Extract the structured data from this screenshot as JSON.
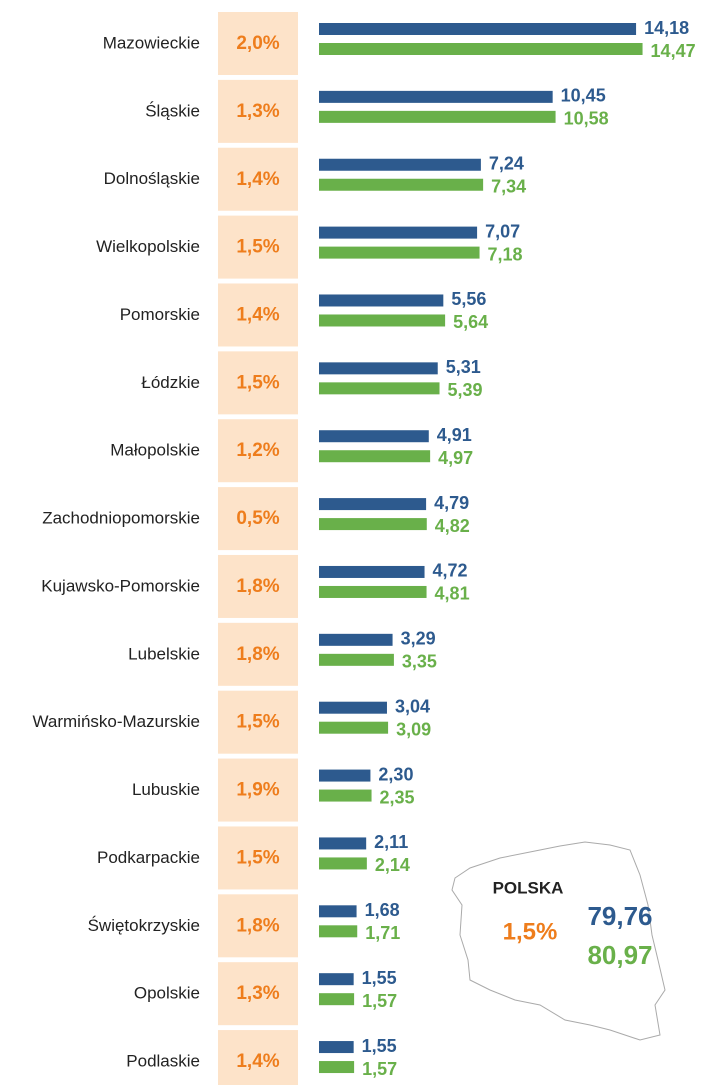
{
  "chart_data": {
    "type": "bar",
    "categories": [
      "Mazowieckie",
      "Śląskie",
      "Dolnośląskie",
      "Wielkopolskie",
      "Pomorskie",
      "Łódzkie",
      "Małopolskie",
      "Zachodniopomorskie",
      "Kujawsko-Pomorskie",
      "Lubelskie",
      "Warmińsko-Mazurskie",
      "Lubuskie",
      "Podkarpackie",
      "Świętokrzyskie",
      "Opolskie",
      "Podlaskie"
    ],
    "series": [
      {
        "color": "#2d5a8e",
        "values": [
          14.18,
          10.45,
          7.24,
          7.07,
          5.56,
          5.31,
          4.91,
          4.79,
          4.72,
          3.29,
          3.04,
          2.3,
          2.11,
          1.68,
          1.55,
          1.55
        ],
        "value_labels": [
          "14,18",
          "10,45",
          "7,24",
          "7,07",
          "5,56",
          "5,31",
          "4,91",
          "4,79",
          "4,72",
          "3,29",
          "3,04",
          "2,30",
          "2,11",
          "1,68",
          "1,55",
          "1,55"
        ]
      },
      {
        "color": "#69b04a",
        "values": [
          14.47,
          10.58,
          7.34,
          7.18,
          5.64,
          5.39,
          4.97,
          4.82,
          4.81,
          3.35,
          3.09,
          2.35,
          2.14,
          1.71,
          1.57,
          1.57
        ],
        "value_labels": [
          "14,47",
          "10,58",
          "7,34",
          "7,18",
          "5,64",
          "5,39",
          "4,97",
          "4,82",
          "4,81",
          "3,35",
          "3,09",
          "2,35",
          "2,14",
          "1,71",
          "1,57",
          "1,57"
        ]
      }
    ],
    "changes": {
      "values": [
        2.0,
        1.3,
        1.4,
        1.5,
        1.4,
        1.5,
        1.2,
        0.5,
        1.8,
        1.8,
        1.5,
        1.9,
        1.5,
        1.8,
        1.3,
        1.4
      ],
      "value_labels": [
        "2,0%",
        "1,3%",
        "1,4%",
        "1,5%",
        "1,4%",
        "1,5%",
        "1,2%",
        "0,5%",
        "1,8%",
        "1,8%",
        "1,5%",
        "1,9%",
        "1,5%",
        "1,8%",
        "1,3%",
        "1,4%"
      ]
    },
    "summary": {
      "title": "POLSKA",
      "change": 1.5,
      "change_label": "1,5%",
      "values": [
        79.76,
        80.97
      ],
      "value_labels": [
        "79,76",
        "80,97"
      ]
    }
  }
}
